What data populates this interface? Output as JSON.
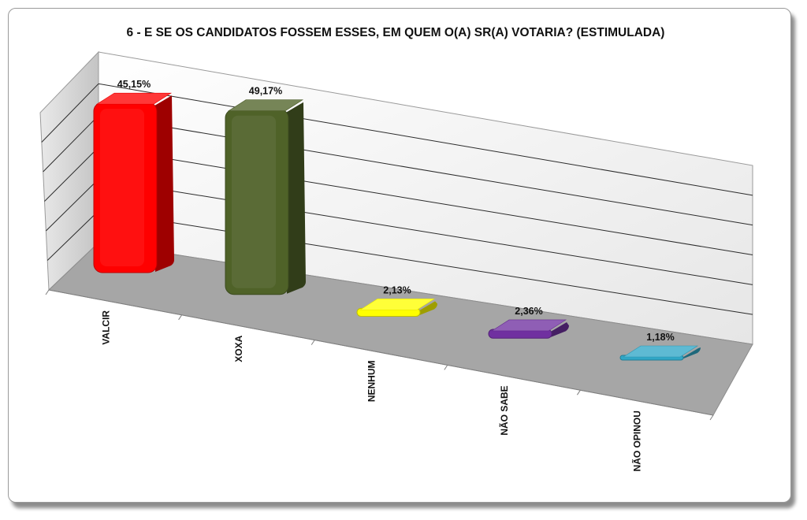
{
  "chart_data": {
    "type": "bar",
    "title": "6 - E SE OS CANDIDATOS FOSSEM ESSES, EM QUEM O(A) SR(A) VOTARIA? (ESTIMULADA)",
    "categories": [
      "VALCIR",
      "XOXA",
      "NENHUM",
      "NÃO SABE",
      "NÃO OPINOU"
    ],
    "values": [
      45.15,
      49.17,
      2.13,
      2.36,
      1.18
    ],
    "value_labels": [
      "45,15%",
      "49,17%",
      "2,13%",
      "2,36%",
      "1,18%"
    ],
    "bar_colors": [
      "#ff0000",
      "#4f6228",
      "#ffff00",
      "#7030a0",
      "#31a7c6"
    ],
    "ylim": [
      0,
      60
    ],
    "grid": true,
    "style": "3d-perspective"
  }
}
